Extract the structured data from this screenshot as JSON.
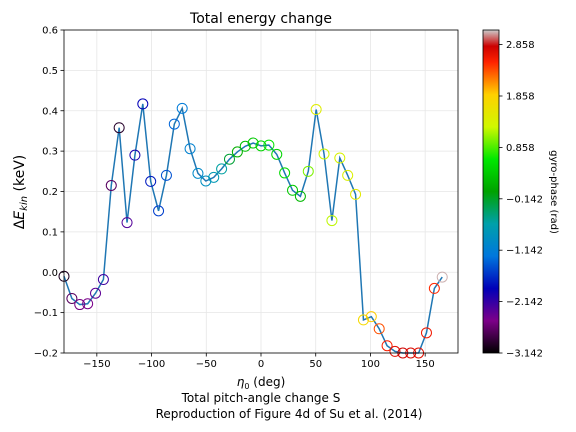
{
  "chart_data": {
    "type": "scatter",
    "title": "Total energy change",
    "xlabel": "η₀ (deg)",
    "ylabel": "ΔE_kin (keV)",
    "xlim": [
      -180,
      180
    ],
    "ylim": [
      -0.2,
      0.6
    ],
    "x_ticks": [
      -150,
      -100,
      -50,
      0,
      50,
      100,
      150
    ],
    "y_ticks": [
      -0.2,
      -0.1,
      0.0,
      0.1,
      0.2,
      0.3,
      0.4,
      0.5,
      0.6
    ],
    "grid": true,
    "line_color": "#1f77b4",
    "colorbar": {
      "label": "gyro-phase (rad)",
      "min": -3.142,
      "max": 3.142,
      "ticks": [
        2.858,
        1.858,
        0.858,
        -0.142,
        -1.142,
        -2.142,
        -3.142
      ],
      "colormap": "nipy_spectral"
    },
    "points": [
      {
        "x": -180,
        "y": -0.01,
        "c": -3.0
      },
      {
        "x": -172.8,
        "y": -0.065,
        "c": -2.7
      },
      {
        "x": -165.6,
        "y": -0.08,
        "c": -2.55
      },
      {
        "x": -158.4,
        "y": -0.078,
        "c": -2.5
      },
      {
        "x": -151.2,
        "y": -0.052,
        "c": -2.35
      },
      {
        "x": -144,
        "y": -0.018,
        "c": -2.2
      },
      {
        "x": -136.8,
        "y": 0.215,
        "c": -2.7
      },
      {
        "x": -129.6,
        "y": 0.358,
        "c": -2.95
      },
      {
        "x": -122.4,
        "y": 0.123,
        "c": -2.3
      },
      {
        "x": -115.2,
        "y": 0.29,
        "c": -2.0
      },
      {
        "x": -108,
        "y": 0.417,
        "c": -1.9
      },
      {
        "x": -100.8,
        "y": 0.225,
        "c": -1.75
      },
      {
        "x": -93.6,
        "y": 0.152,
        "c": -1.55
      },
      {
        "x": -86.4,
        "y": 0.24,
        "c": -1.45
      },
      {
        "x": -79.2,
        "y": 0.367,
        "c": -1.35
      },
      {
        "x": -72,
        "y": 0.406,
        "c": -1.2
      },
      {
        "x": -64.8,
        "y": 0.306,
        "c": -1.1
      },
      {
        "x": -57.6,
        "y": 0.245,
        "c": -1.0
      },
      {
        "x": -50.4,
        "y": 0.226,
        "c": -0.9
      },
      {
        "x": -43.2,
        "y": 0.235,
        "c": -0.75
      },
      {
        "x": -36,
        "y": 0.256,
        "c": -0.6
      },
      {
        "x": -28.8,
        "y": 0.28,
        "c": -0.2
      },
      {
        "x": -21.6,
        "y": 0.298,
        "c": 0.1
      },
      {
        "x": -14.4,
        "y": 0.312,
        "c": 0.25
      },
      {
        "x": -7.2,
        "y": 0.32,
        "c": 0.35
      },
      {
        "x": 0,
        "y": 0.313,
        "c": 0.45
      },
      {
        "x": 7.2,
        "y": 0.315,
        "c": 0.6
      },
      {
        "x": 14.4,
        "y": 0.292,
        "c": 0.45
      },
      {
        "x": 21.6,
        "y": 0.246,
        "c": 0.5
      },
      {
        "x": 28.8,
        "y": 0.203,
        "c": 0.35
      },
      {
        "x": 36,
        "y": 0.188,
        "c": 0.2
      },
      {
        "x": 43.2,
        "y": 0.25,
        "c": 1.0
      },
      {
        "x": 50.4,
        "y": 0.403,
        "c": 1.45
      },
      {
        "x": 57.6,
        "y": 0.293,
        "c": 1.25
      },
      {
        "x": 64.8,
        "y": 0.128,
        "c": 1.2
      },
      {
        "x": 72,
        "y": 0.283,
        "c": 1.35
      },
      {
        "x": 79.2,
        "y": 0.24,
        "c": 1.4
      },
      {
        "x": 86.4,
        "y": 0.193,
        "c": 1.5
      },
      {
        "x": 93.6,
        "y": -0.118,
        "c": 1.75
      },
      {
        "x": 100.8,
        "y": -0.11,
        "c": 1.9
      },
      {
        "x": 108,
        "y": -0.14,
        "c": 2.35
      },
      {
        "x": 115.2,
        "y": -0.182,
        "c": 2.55
      },
      {
        "x": 122.4,
        "y": -0.196,
        "c": 2.7
      },
      {
        "x": 129.6,
        "y": -0.2,
        "c": 2.8
      },
      {
        "x": 136.8,
        "y": -0.2,
        "c": 2.75
      },
      {
        "x": 144,
        "y": -0.2,
        "c": 2.7
      },
      {
        "x": 151.2,
        "y": -0.15,
        "c": 2.6
      },
      {
        "x": 158.4,
        "y": -0.04,
        "c": 2.5
      },
      {
        "x": 165.6,
        "y": -0.012,
        "c": 3.1
      }
    ]
  },
  "caption": {
    "line1": "Total pitch-angle change S",
    "line2": "Reproduction of Figure 4d of Su et al. (2014)"
  }
}
